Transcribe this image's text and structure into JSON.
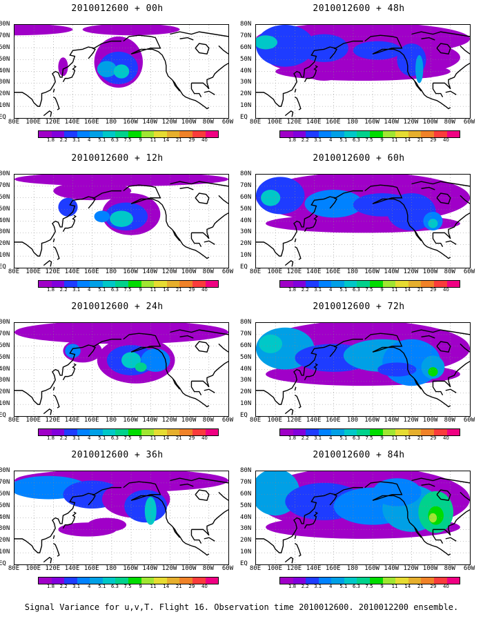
{
  "panels": [
    {
      "title": "2010012600 + 00h"
    },
    {
      "title": "2010012600 + 48h"
    },
    {
      "title": "2010012600 + 12h"
    },
    {
      "title": "2010012600 + 60h"
    },
    {
      "title": "2010012600 + 24h"
    },
    {
      "title": "2010012600 + 72h"
    },
    {
      "title": "2010012600 + 36h"
    },
    {
      "title": "2010012600 + 84h"
    }
  ],
  "lat_labels": [
    "80N",
    "70N",
    "60N",
    "50N",
    "40N",
    "30N",
    "20N",
    "10N",
    "EQ"
  ],
  "lon_labels": [
    "80E",
    "100E",
    "120E",
    "140E",
    "160E",
    "180",
    "160W",
    "140W",
    "120W",
    "100W",
    "80W",
    "60W"
  ],
  "colorbar": {
    "labels": [
      "1.8",
      "2.2",
      "3.1",
      "4",
      "5.1",
      "6.3",
      "7.5",
      "9",
      "11",
      "14",
      "21",
      "29",
      "40"
    ],
    "colors": [
      "#a000c8",
      "#8200dc",
      "#1e3cff",
      "#0082ff",
      "#00a0e6",
      "#00c8c8",
      "#00d28c",
      "#00dc00",
      "#a0e632",
      "#e6dc32",
      "#e6af2d",
      "#f08228",
      "#fa3c3c",
      "#f00082"
    ]
  },
  "caption": "Signal Variance for u,v,T. Flight 16. Observation time 2010012600. 2010012200 ensemble."
}
